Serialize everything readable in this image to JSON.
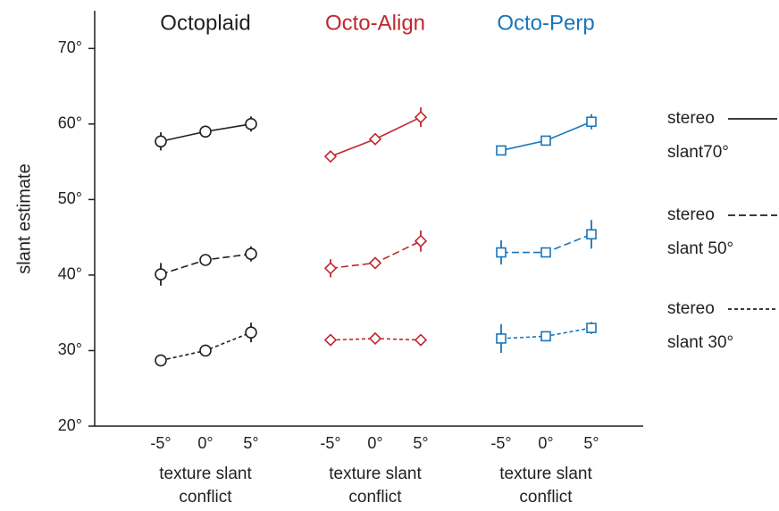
{
  "chart_data": {
    "type": "line",
    "ylabel": "slant estimate",
    "xlabel": "texture slant conflict",
    "categories": [
      "-5°",
      "0°",
      "5°"
    ],
    "ylim": [
      20,
      75
    ],
    "yticks": [
      {
        "value": 20,
        "label": "20°"
      },
      {
        "value": 30,
        "label": "30°"
      },
      {
        "value": 40,
        "label": "40°"
      },
      {
        "value": 50,
        "label": "50°"
      },
      {
        "value": 60,
        "label": "60°"
      },
      {
        "value": 70,
        "label": "70°"
      }
    ],
    "legend": [
      {
        "name": "stereo slant70°",
        "linestyle": "solid"
      },
      {
        "name": "stereo slant 50°",
        "linestyle": "dashed"
      },
      {
        "name": "stereo slant 30°",
        "linestyle": "dotted"
      }
    ],
    "groups": [
      {
        "title": "Octoplaid",
        "color": "#231f20",
        "marker": "circle",
        "series": [
          {
            "values": [
              57.7,
              59.0,
              60.0
            ],
            "errors": [
              1.2,
              0.3,
              1.0
            ]
          },
          {
            "values": [
              40.1,
              42.0,
              42.8
            ],
            "errors": [
              1.5,
              0.3,
              1.0
            ]
          },
          {
            "values": [
              28.7,
              30.0,
              32.4
            ],
            "errors": [
              0.7,
              0.3,
              1.3
            ]
          }
        ]
      },
      {
        "title": "Octo-Align",
        "color": "#c0272d",
        "marker": "diamond",
        "series": [
          {
            "values": [
              55.7,
              58.0,
              60.9
            ],
            "errors": [
              0.3,
              0.3,
              1.3
            ]
          },
          {
            "values": [
              40.9,
              41.6,
              44.5
            ],
            "errors": [
              1.2,
              0.3,
              1.4
            ]
          },
          {
            "values": [
              31.4,
              31.6,
              31.4
            ],
            "errors": [
              0.6,
              0.3,
              0.3
            ]
          }
        ]
      },
      {
        "title": "Octo-Perp",
        "color": "#1a75bb",
        "marker": "square",
        "series": [
          {
            "values": [
              56.5,
              57.8,
              60.3
            ],
            "errors": [
              0.3,
              0.3,
              1.0
            ]
          },
          {
            "values": [
              43.0,
              43.0,
              45.4
            ],
            "errors": [
              1.6,
              0.3,
              1.9
            ]
          },
          {
            "values": [
              31.6,
              31.9,
              33.0
            ],
            "errors": [
              1.9,
              0.3,
              0.8
            ]
          }
        ]
      }
    ]
  }
}
